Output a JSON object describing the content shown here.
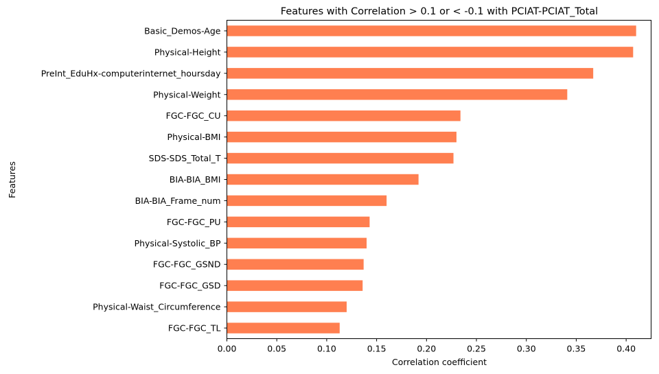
{
  "chart_data": {
    "type": "bar",
    "orientation": "horizontal",
    "title": "Features with Correlation > 0.1 or < -0.1 with PCIAT-PCIAT_Total",
    "xlabel": "Correlation coefficient",
    "ylabel": "Features",
    "xlim": [
      0.0,
      0.425
    ],
    "xticks": [
      "0.00",
      "0.05",
      "0.10",
      "0.15",
      "0.20",
      "0.25",
      "0.30",
      "0.35",
      "0.40"
    ],
    "grid": false,
    "bar_color": "#ff7f50",
    "categories": [
      "Basic_Demos-Age",
      "Physical-Height",
      "PreInt_EduHx-computerinternet_hoursday",
      "Physical-Weight",
      "FGC-FGC_CU",
      "Physical-BMI",
      "SDS-SDS_Total_T",
      "BIA-BIA_BMI",
      "BIA-BIA_Frame_num",
      "FGC-FGC_PU",
      "Physical-Systolic_BP",
      "FGC-FGC_GSND",
      "FGC-FGC_GSD",
      "Physical-Waist_Circumference",
      "FGC-FGC_TL"
    ],
    "values": [
      0.41,
      0.407,
      0.367,
      0.341,
      0.234,
      0.23,
      0.227,
      0.192,
      0.16,
      0.143,
      0.14,
      0.137,
      0.136,
      0.12,
      0.113
    ]
  }
}
